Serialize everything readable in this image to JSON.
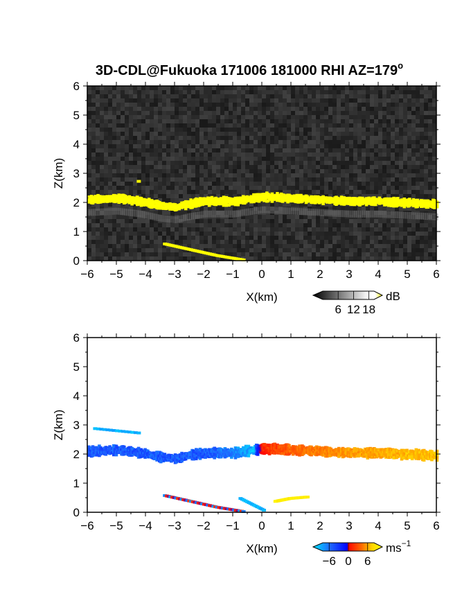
{
  "chart_data": [
    {
      "type": "heatmap",
      "title": "3D-CDL@Fukuoka 171006 181000 RHI AZ=179",
      "title_superscript": "o",
      "xlabel": "X(km)",
      "ylabel": "Z(km)",
      "xlim": [
        -6,
        6
      ],
      "ylim": [
        0,
        6
      ],
      "x_ticks": [
        "−6",
        "−5",
        "−4",
        "−3",
        "−2",
        "−1",
        "0",
        "1",
        "2",
        "3",
        "4",
        "5",
        "6"
      ],
      "y_ticks": [
        "0",
        "1",
        "2",
        "3",
        "4",
        "5",
        "6"
      ],
      "background": "dark gray noise (low SNR)",
      "colorbar": {
        "unit": "dB",
        "ticks": [
          "6",
          "12",
          "18"
        ],
        "range": [
          0,
          20
        ],
        "colors": [
          "#000000",
          "#ffffff",
          "#ffff00"
        ]
      },
      "features": [
        {
          "name": "cloud base layer",
          "value_dB": 18,
          "color": "#ffff00",
          "profile": [
            [
              -6,
              2.1
            ],
            [
              -5,
              2.15
            ],
            [
              -4.2,
              2.05
            ],
            [
              -3.5,
              1.9
            ],
            [
              -3,
              1.85
            ],
            [
              -2.6,
              1.95
            ],
            [
              -2,
              2.05
            ],
            [
              -1.5,
              2.05
            ],
            [
              -1,
              2.05
            ],
            [
              0,
              2.2
            ],
            [
              1,
              2.15
            ],
            [
              2,
              2.1
            ],
            [
              3,
              2.05
            ],
            [
              4,
              2.05
            ],
            [
              5,
              2.0
            ],
            [
              6,
              1.95
            ]
          ],
          "thickness_km": 0.25
        },
        {
          "name": "low slanted echo",
          "value_dB": 18,
          "color": "#ffff00",
          "points": [
            [
              -3.4,
              0.55
            ],
            [
              -2.5,
              0.35
            ],
            [
              -1.6,
              0.15
            ],
            [
              -0.7,
              0.0
            ]
          ]
        },
        {
          "name": "isolated patch",
          "value_dB": 18,
          "color": "#ffff00",
          "points": [
            [
              -4.3,
              2.7
            ]
          ]
        }
      ]
    },
    {
      "type": "heatmap",
      "xlabel": "X(km)",
      "ylabel": "Z(km)",
      "xlim": [
        -6,
        6
      ],
      "ylim": [
        0,
        6
      ],
      "x_ticks": [
        "−6",
        "−5",
        "−4",
        "−3",
        "−2",
        "−1",
        "0",
        "1",
        "2",
        "3",
        "4",
        "5",
        "6"
      ],
      "y_ticks": [
        "0",
        "1",
        "2",
        "3",
        "4",
        "5",
        "6"
      ],
      "background": "white",
      "colorbar": {
        "unit": "ms",
        "unit_superscript": "−1",
        "ticks": [
          "−6",
          "0",
          "6"
        ],
        "range": [
          -8,
          8
        ],
        "colors": [
          "#00e5ff",
          "#1e66ff",
          "#0000ff",
          "#ff0000",
          "#ff6a00",
          "#ffd400",
          "#ffff00"
        ]
      },
      "features": [
        {
          "name": "doppler velocity layer",
          "profile": [
            [
              -6,
              2.1
            ],
            [
              -5,
              2.15
            ],
            [
              -4.2,
              2.05
            ],
            [
              -3.5,
              1.9
            ],
            [
              -3,
              1.85
            ],
            [
              -2.6,
              1.95
            ],
            [
              -2,
              2.05
            ],
            [
              -1.5,
              2.05
            ],
            [
              -1,
              2.05
            ],
            [
              0,
              2.2
            ],
            [
              1,
              2.15
            ],
            [
              2,
              2.1
            ],
            [
              3,
              2.05
            ],
            [
              4,
              2.05
            ],
            [
              5,
              2.0
            ],
            [
              6,
              1.95
            ]
          ],
          "velocity_ms": [
            [
              -6,
              -5
            ],
            [
              -4,
              -5
            ],
            [
              -2,
              -5
            ],
            [
              -1,
              -6
            ],
            [
              -0.3,
              -7
            ],
            [
              0,
              1
            ],
            [
              1,
              2.5
            ],
            [
              3,
              4
            ],
            [
              6,
              5
            ]
          ],
          "thickness_km": 0.3
        },
        {
          "name": "isolated cyan patches",
          "velocity_ms": -7,
          "points": [
            [
              -5.8,
              2.85
            ],
            [
              -4.3,
              2.7
            ]
          ]
        },
        {
          "name": "low slanted echo",
          "velocity_ms": 1,
          "points": [
            [
              -3.4,
              0.55
            ],
            [
              -2.5,
              0.35
            ],
            [
              -1.6,
              0.15
            ],
            [
              -0.7,
              0.0
            ]
          ]
        },
        {
          "name": "near-surface cyan",
          "velocity_ms": -7,
          "points": [
            [
              -0.8,
              0.45
            ],
            [
              0.0,
              0.05
            ]
          ]
        },
        {
          "name": "near-surface yellow",
          "velocity_ms": 7,
          "points": [
            [
              0.4,
              0.35
            ],
            [
              0.9,
              0.45
            ],
            [
              1.5,
              0.5
            ]
          ]
        }
      ]
    }
  ]
}
